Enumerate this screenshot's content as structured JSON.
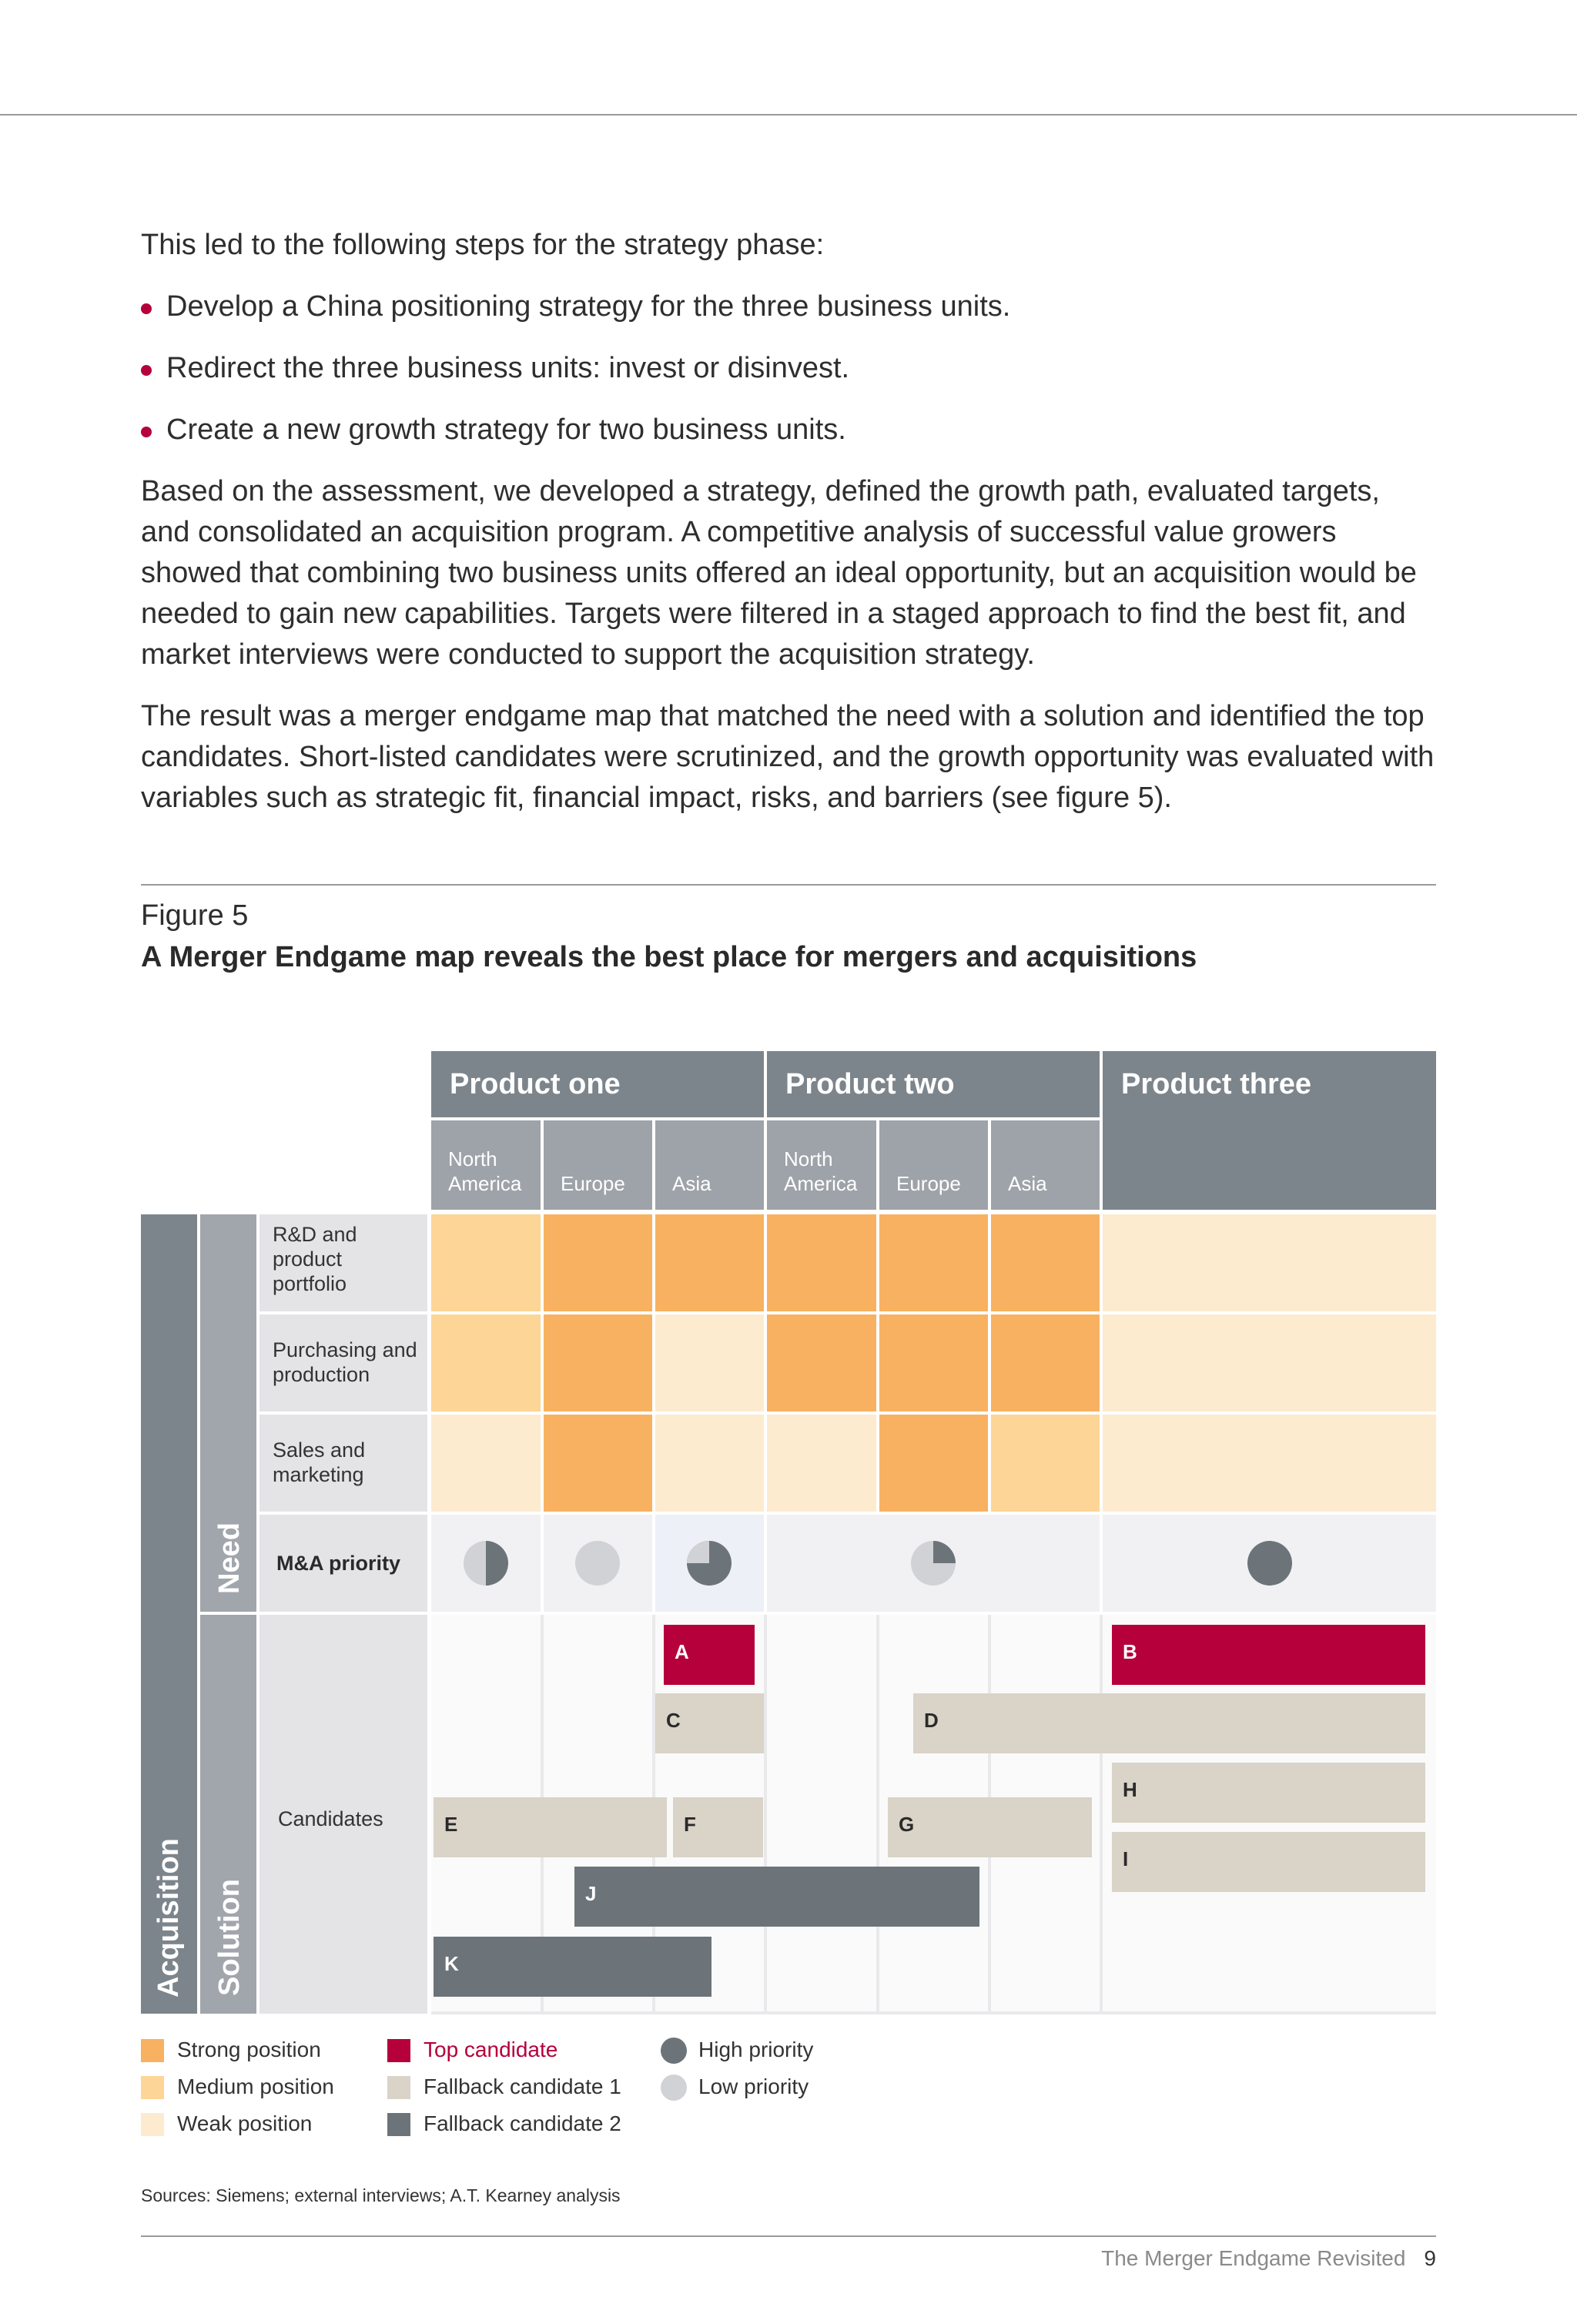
{
  "intro": "This led to the following steps for the strategy phase:",
  "bullets": [
    "Develop a China positioning strategy for the three business units.",
    "Redirect the three business units: invest or disinvest.",
    "Create a new growth strategy for two business units."
  ],
  "paragraph1": "Based on the assessment, we developed a strategy, defined the growth path, evaluated targets, and consolidated an acquisition program. A competitive analysis of successful value growers showed that combining two business units offered an ideal opportunity, but an acquisition would be needed to gain new capabilities. Targets were filtered in a staged approach to find the best fit, and market interviews were conducted to support the acquisition strategy.",
  "paragraph2": "The result was a merger endgame map that matched the need with a solution and identified the top candidates. Short-listed candidates were scrutinized, and the growth opportunity was evaluated with variables such as strategic fit, financial impact, risks, and barriers (see figure 5).",
  "figure": {
    "label": "Figure 5",
    "title": "A Merger Endgame map reveals the best place for mergers and acquisitions",
    "products": [
      "Product one",
      "Product two",
      "Product three"
    ],
    "regions": [
      "North America",
      "Europe",
      "Asia",
      "North America",
      "Europe",
      "Asia"
    ],
    "side_labels": {
      "acquisition": "Acquisition",
      "need": "Need",
      "solution": "Solution"
    },
    "rows": [
      "R&D and product portfolio",
      "Purchasing and production",
      "Sales and marketing"
    ],
    "priority_label": "M&A priority",
    "candidates_label": "Candidates",
    "position_matrix": [
      [
        "medium",
        "strong",
        "strong",
        "strong",
        "strong",
        "strong",
        "weak"
      ],
      [
        "medium",
        "strong",
        "weak",
        "strong",
        "strong",
        "strong",
        "weak"
      ],
      [
        "weak",
        "strong",
        "weak",
        "weak",
        "strong",
        "medium",
        "weak"
      ]
    ],
    "priority_fill": [
      0.5,
      0,
      0.75,
      0.25,
      1
    ],
    "candidates": [
      {
        "id": "A",
        "type": "top"
      },
      {
        "id": "B",
        "type": "top"
      },
      {
        "id": "C",
        "type": "fallback1"
      },
      {
        "id": "D",
        "type": "fallback1"
      },
      {
        "id": "E",
        "type": "fallback1"
      },
      {
        "id": "F",
        "type": "fallback1"
      },
      {
        "id": "G",
        "type": "fallback1"
      },
      {
        "id": "H",
        "type": "fallback1"
      },
      {
        "id": "I",
        "type": "fallback1"
      },
      {
        "id": "J",
        "type": "fallback2"
      },
      {
        "id": "K",
        "type": "fallback2"
      }
    ],
    "colors": {
      "strong": "#f8b161",
      "medium": "#fdd596",
      "weak": "#fdebcf",
      "top": "#b5003b",
      "fallback1": "#d9d3c8",
      "fallback2": "#6c747a",
      "high_priority": "#6c747a",
      "low_priority": "#d0d2d5"
    }
  },
  "legend": {
    "strong": "Strong position",
    "medium": "Medium position",
    "weak": "Weak position",
    "top": "Top candidate",
    "fallback1": "Fallback candidate 1",
    "fallback2": "Fallback candidate 2",
    "high": "High priority",
    "low": "Low priority"
  },
  "sources": "Sources: Siemens; external interviews; A.T. Kearney analysis",
  "footer": {
    "title": "The Merger Endgame Revisited",
    "page": "9"
  }
}
